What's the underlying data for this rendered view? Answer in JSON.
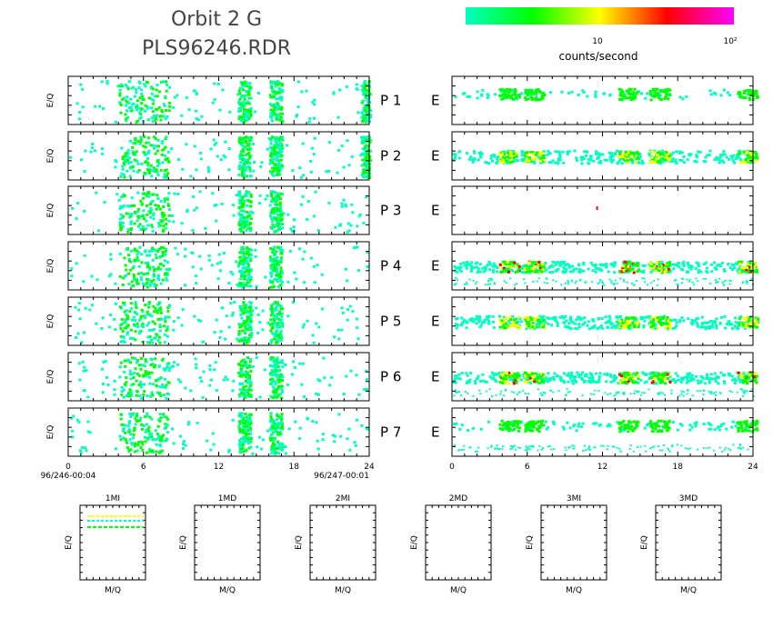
{
  "header": {
    "title_line1": "Orbit 2 G",
    "title_line2": "PLS96246.RDR"
  },
  "colorbar": {
    "colors": [
      "#00ffc0",
      "#00ff00",
      "#ffff00",
      "#ff0000",
      "#ff00ff"
    ],
    "tick1": "10",
    "tick2": "10²",
    "label": "counts/second"
  },
  "chart_data": [
    {
      "type": "heatmap",
      "title": "",
      "description_labels": {
        "ylabel": "E/Q",
        "x_ticks": [
          "0",
          "6",
          "12",
          "18",
          "24"
        ],
        "x_start_label": "96/246-00:04",
        "x_end_label": "96/247-00:01"
      },
      "xlim": [
        0,
        24
      ],
      "rows": [
        {
          "label": "P 1",
          "side": "left",
          "bands": [
            [
              4,
              8
            ],
            [
              13.5,
              14.5
            ],
            [
              16,
              17
            ],
            [
              23.3,
              24
            ]
          ]
        },
        {
          "label": "P 2",
          "side": "left",
          "bands": [
            [
              4,
              8
            ],
            [
              13.5,
              14.5
            ],
            [
              16,
              17
            ],
            [
              23.3,
              24
            ]
          ]
        },
        {
          "label": "P 3",
          "side": "left",
          "bands": [
            [
              4,
              8
            ],
            [
              13.5,
              14.5
            ],
            [
              16,
              17
            ]
          ]
        },
        {
          "label": "P 4",
          "side": "left",
          "bands": [
            [
              4,
              8
            ],
            [
              13.5,
              14.5
            ],
            [
              16,
              17
            ]
          ]
        },
        {
          "label": "P 5",
          "side": "left",
          "bands": [
            [
              4,
              8
            ],
            [
              13.5,
              14.5
            ],
            [
              16,
              17
            ]
          ]
        },
        {
          "label": "P 6",
          "side": "left",
          "bands": [
            [
              4,
              8
            ],
            [
              13.5,
              14.5
            ],
            [
              16,
              17
            ]
          ]
        },
        {
          "label": "P 7",
          "side": "left",
          "bands": [
            [
              4,
              8
            ],
            [
              13.5,
              14.5
            ],
            [
              16,
              17
            ]
          ]
        }
      ]
    },
    {
      "type": "heatmap",
      "title": "",
      "description_labels": {
        "x_ticks": [
          "0",
          "6",
          "12",
          "18",
          "24"
        ]
      },
      "xlim": [
        0,
        24
      ],
      "rows": [
        {
          "label": "E",
          "channel": "P 1",
          "peaks": [
            [
              4.5,
              6.5
            ],
            [
              14,
              16.5
            ],
            [
              23.5
            ]
          ],
          "level": "low"
        },
        {
          "label": "E",
          "channel": "P 2",
          "peaks": [
            [
              4.5,
              6.5
            ],
            [
              14,
              16.5
            ],
            [
              23.5
            ]
          ],
          "level": "medium"
        },
        {
          "label": "E",
          "channel": "P 3",
          "peaks": [
            [
              11.5
            ]
          ],
          "level": "single"
        },
        {
          "label": "E",
          "channel": "P 4",
          "peaks": [
            [
              4.5,
              6.5
            ],
            [
              14,
              16.5
            ],
            [
              23.5
            ]
          ],
          "level": "high"
        },
        {
          "label": "E",
          "channel": "P 5",
          "peaks": [
            [
              4.5,
              6.5
            ],
            [
              14,
              16.5
            ],
            [
              23.5
            ]
          ],
          "level": "medium"
        },
        {
          "label": "E",
          "channel": "P 6",
          "peaks": [
            [
              4.5,
              6.5
            ],
            [
              14,
              16.5
            ],
            [
              23.5
            ]
          ],
          "level": "high"
        },
        {
          "label": "E",
          "channel": "P 7",
          "peaks": [
            [
              4.5,
              6.5
            ],
            [
              14,
              16.5
            ],
            [
              23.5
            ]
          ],
          "level": "low"
        }
      ]
    },
    {
      "type": "heatmap",
      "panels": [
        {
          "title": "1MI",
          "xlabel": "M/Q",
          "ylabel": "E/Q",
          "has_data": true
        },
        {
          "title": "1MD",
          "xlabel": "M/Q",
          "ylabel": "E/Q",
          "has_data": false
        },
        {
          "title": "2MI",
          "xlabel": "M/Q",
          "ylabel": "E/Q",
          "has_data": false
        },
        {
          "title": "2MD",
          "xlabel": "M/Q",
          "ylabel": "E/Q",
          "has_data": false
        },
        {
          "title": "3MI",
          "xlabel": "M/Q",
          "ylabel": "E/Q",
          "has_data": false
        },
        {
          "title": "3MD",
          "xlabel": "M/Q",
          "ylabel": "E/Q",
          "has_data": false
        }
      ]
    }
  ]
}
